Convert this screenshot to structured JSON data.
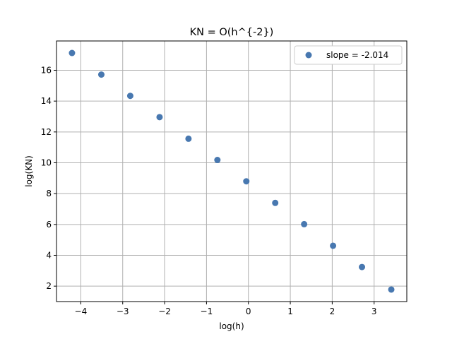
{
  "chart_data": {
    "type": "scatter",
    "title": "KN = O(h^{-2})",
    "xlabel": "log(h)",
    "ylabel": "log(KN)",
    "xlim": [
      -4.58,
      3.78
    ],
    "ylim": [
      1.0,
      17.9
    ],
    "xticks": [
      -4,
      -3,
      -2,
      -1,
      0,
      1,
      2,
      3
    ],
    "xtick_labels": [
      "−4",
      "−3",
      "−2",
      "−1",
      "0",
      "1",
      "2",
      "3"
    ],
    "yticks": [
      2,
      4,
      6,
      8,
      10,
      12,
      14,
      16
    ],
    "ytick_labels": [
      "2",
      "4",
      "6",
      "8",
      "10",
      "12",
      "14",
      "16"
    ],
    "grid": true,
    "legend_position": "upper right",
    "series": [
      {
        "name": "slope = -2.014",
        "color": "#4878b0",
        "points": [
          {
            "x": -4.21,
            "y": 17.12
          },
          {
            "x": -3.51,
            "y": 15.72
          },
          {
            "x": -2.82,
            "y": 14.34
          },
          {
            "x": -2.12,
            "y": 12.96
          },
          {
            "x": -1.43,
            "y": 11.56
          },
          {
            "x": -0.74,
            "y": 10.18
          },
          {
            "x": -0.05,
            "y": 8.8
          },
          {
            "x": 0.64,
            "y": 7.4
          },
          {
            "x": 1.33,
            "y": 6.02
          },
          {
            "x": 2.02,
            "y": 4.62
          },
          {
            "x": 2.71,
            "y": 3.24
          },
          {
            "x": 3.41,
            "y": 1.78
          }
        ]
      }
    ]
  }
}
